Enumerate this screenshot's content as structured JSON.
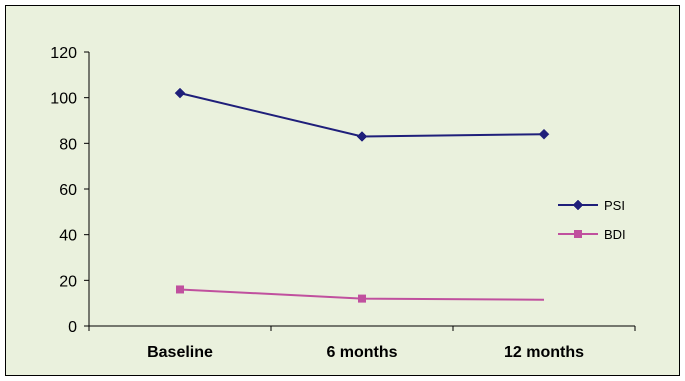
{
  "chart_data": {
    "type": "line",
    "title": "",
    "xlabel": "",
    "ylabel": "",
    "categories": [
      "Baseline",
      "6 months",
      "12 months"
    ],
    "ylim": [
      0,
      120
    ],
    "yticks": [
      0,
      20,
      40,
      60,
      80,
      100,
      120
    ],
    "grid": false,
    "legend": "right",
    "series": [
      {
        "name": "PSI",
        "values": [
          102,
          83,
          84
        ],
        "color": "#1f1f7a",
        "marker": "diamond"
      },
      {
        "name": "BDI",
        "values": [
          16,
          12,
          11.5
        ],
        "color": "#c0509e",
        "marker": "square"
      }
    ],
    "colors": {
      "background": "#eaf1dd"
    }
  }
}
